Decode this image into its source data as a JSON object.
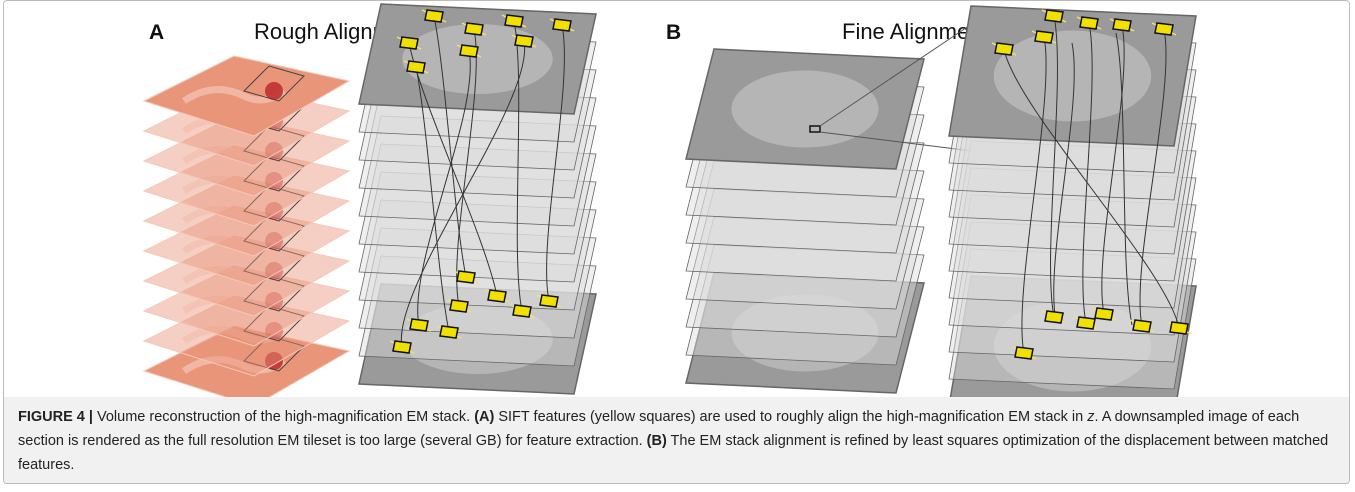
{
  "panels": [
    {
      "label": "A",
      "title": "Rough Alignment (3D)"
    },
    {
      "label": "B",
      "title": "Fine Alignment (3D)"
    }
  ],
  "caption": {
    "figure": "FIGURE 4 |",
    "intro": " Volume reconstruction of the high-magnification EM stack. ",
    "a_label": "(A)",
    "a_text": " SIFT features (yellow squares) are used to roughly align the high-magnification EM stack in",
    "a_var": "z",
    "a_text2": ". A downsampled image of each section is rendered as the full resolution EM tileset is too large (several GB) for feature extraction. ",
    "b_label": "(B)",
    "b_text": " The EM stack alignment is refined by least squares optimization of the displacement between matched features."
  }
}
